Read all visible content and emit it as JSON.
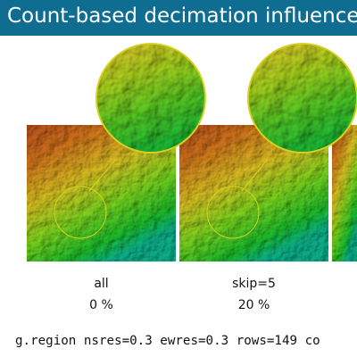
{
  "title": "Count-based decimation influence on int",
  "colors": {
    "title_bar": "#0e6d90",
    "title_text": "#ffffff",
    "highlight_circle": "#d8d020",
    "relief_high": "#b5531a",
    "relief_mid": "#c9b11f",
    "relief_low": "#1ea81e",
    "relief_lowest": "#0aa07a"
  },
  "panels": [
    {
      "label": "all",
      "percent": "0 %"
    },
    {
      "label": "skip=5",
      "percent": "20 %"
    }
  ],
  "command": "g.region nsres=0.3 ewres=0.3 rows=149 co"
}
